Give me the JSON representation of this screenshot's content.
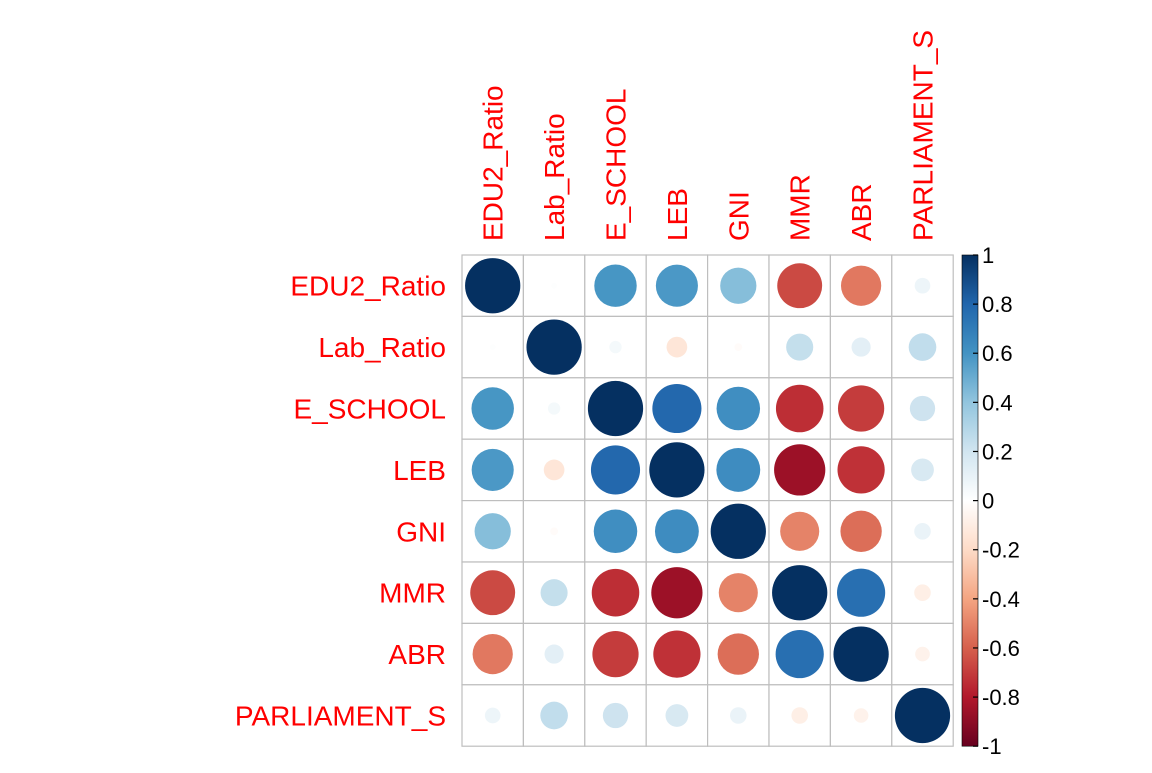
{
  "chart_data": {
    "type": "heatmap",
    "variables": [
      "EDU2_Ratio",
      "Lab_Ratio",
      "E_SCHOOL",
      "LEB",
      "GNI",
      "MMR",
      "ABR",
      "PARLIAMENT_S"
    ],
    "matrix": [
      [
        1.0,
        0.01,
        0.59,
        0.58,
        0.43,
        -0.66,
        -0.53,
        0.08
      ],
      [
        0.01,
        1.0,
        0.05,
        -0.14,
        -0.02,
        0.24,
        0.12,
        0.25
      ],
      [
        0.59,
        0.05,
        1.0,
        0.79,
        0.62,
        -0.74,
        -0.7,
        0.21
      ],
      [
        0.58,
        -0.14,
        0.79,
        1.0,
        0.63,
        -0.86,
        -0.73,
        0.17
      ],
      [
        0.43,
        -0.02,
        0.62,
        0.63,
        1.0,
        -0.5,
        -0.56,
        0.09
      ],
      [
        -0.66,
        0.24,
        -0.74,
        -0.86,
        -0.5,
        1.0,
        0.76,
        -0.09
      ],
      [
        -0.53,
        0.12,
        -0.7,
        -0.73,
        -0.56,
        0.76,
        1.0,
        -0.07
      ],
      [
        0.08,
        0.25,
        0.21,
        0.17,
        0.09,
        -0.09,
        -0.07,
        1.0
      ]
    ],
    "colorbar": {
      "ticks": [
        "1",
        "0.8",
        "0.6",
        "0.4",
        "0.2",
        "0",
        "-0.2",
        "-0.4",
        "-0.6",
        "-0.8",
        "-1"
      ],
      "range": [
        -1,
        1
      ]
    },
    "label_color": "#FF0000",
    "grid_color": "#BEBEBE",
    "palette": [
      "#67001F",
      "#B2182B",
      "#D6604D",
      "#F4A582",
      "#FDDBC7",
      "#FFFFFF",
      "#D1E5F0",
      "#92C5DE",
      "#4393C3",
      "#2166AC",
      "#053061"
    ]
  }
}
